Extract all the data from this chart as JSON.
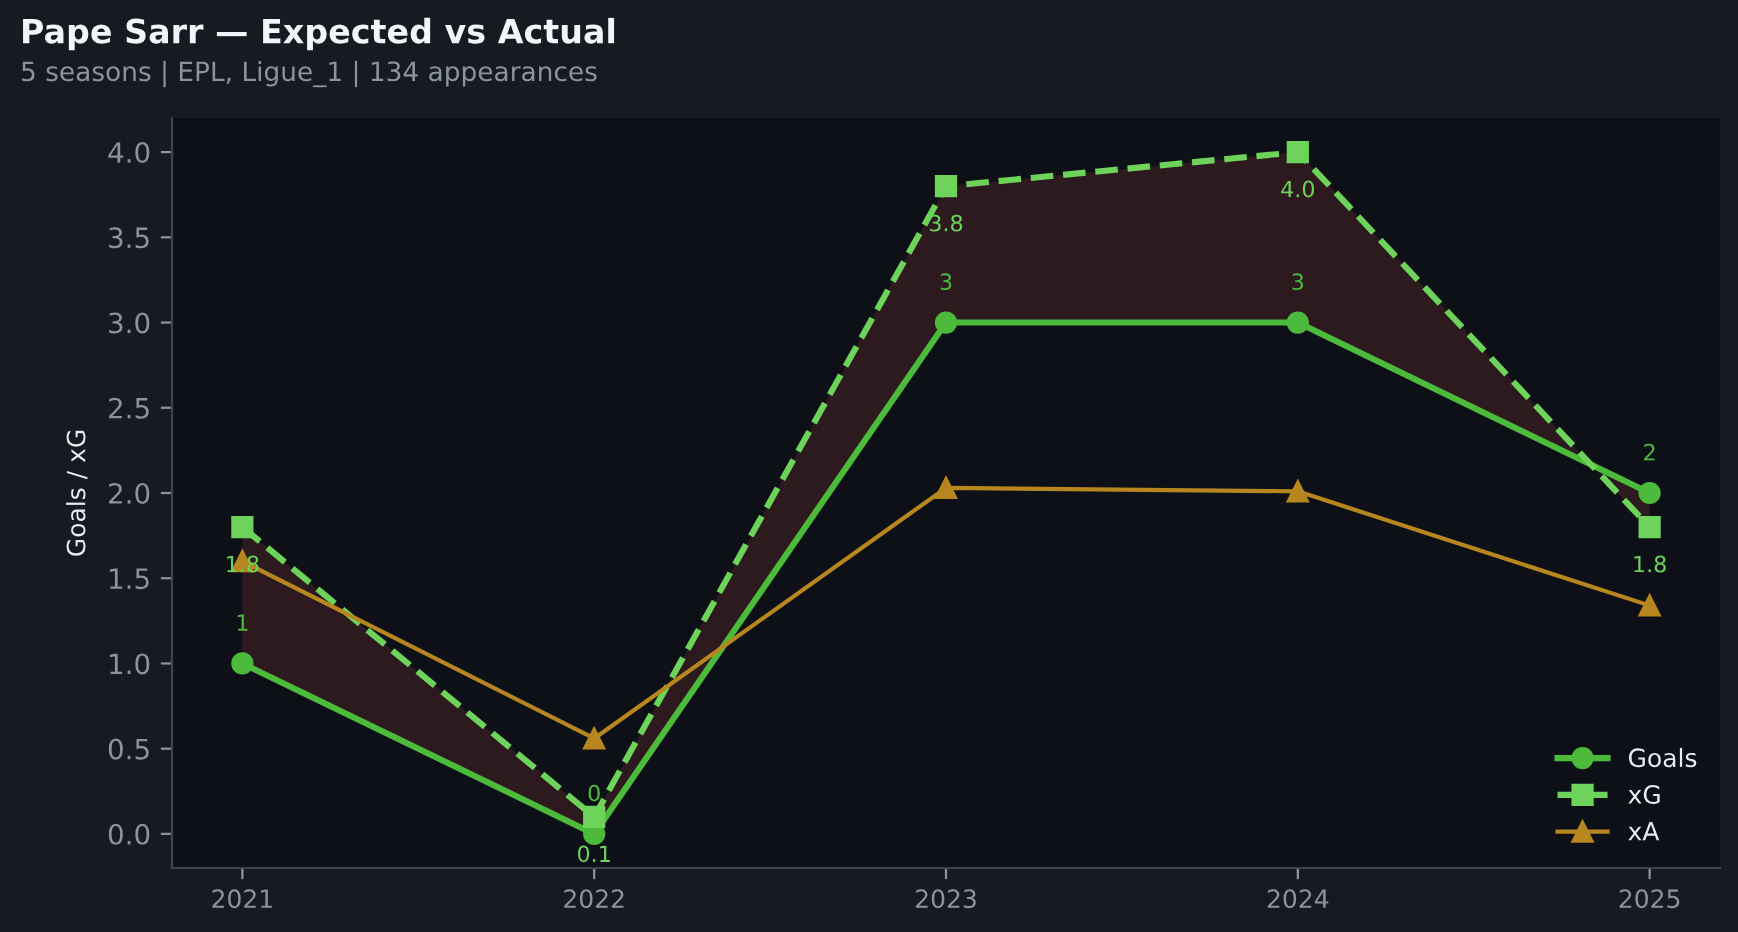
{
  "chart_data": {
    "type": "line",
    "title": "Pape Sarr — Expected vs Actual",
    "subtitle": "5 seasons | EPL, Ligue_1 | 134 appearances",
    "ylabel": "Goals / xG",
    "categories": [
      "2021",
      "2022",
      "2023",
      "2024",
      "2025"
    ],
    "series": [
      {
        "name": "Goals",
        "color": "#4cbb3c",
        "values": [
          1,
          0,
          3,
          3,
          2
        ],
        "marker": "circle",
        "line_style": "solid",
        "value_labels": [
          "1",
          "0",
          "3",
          "3",
          "2"
        ]
      },
      {
        "name": "xG",
        "color": "#6dd35a",
        "values": [
          1.8,
          0.1,
          3.8,
          4.0,
          1.8
        ],
        "marker": "square",
        "line_style": "dashed",
        "value_labels": [
          "1.8",
          "0.1",
          "3.8",
          "4.0",
          "1.8"
        ],
        "lower": [
          1,
          0,
          3,
          3,
          2
        ],
        "upper": [
          1.8,
          0.1,
          3.8,
          4.0,
          1.8
        ]
      },
      {
        "name": "xA",
        "color": "#b8861e",
        "values": [
          1.6,
          0.56,
          2.03,
          2.01,
          1.34
        ],
        "marker": "triangle",
        "line_style": "solid"
      }
    ],
    "ylim": [
      -0.2,
      4.2
    ],
    "yticks": [
      {
        "value": 0,
        "label": "0.0"
      },
      {
        "value": 0.5,
        "label": "0.5"
      },
      {
        "value": 1,
        "label": "1.0"
      },
      {
        "value": 1.5,
        "label": "1.5"
      },
      {
        "value": 2,
        "label": "2.0"
      },
      {
        "value": 2.5,
        "label": "2.5"
      },
      {
        "value": 3,
        "label": "3.0"
      },
      {
        "value": 3.5,
        "label": "3.5"
      },
      {
        "value": 4,
        "label": "4.0"
      }
    ],
    "grid": false,
    "legend": "bottom right"
  }
}
